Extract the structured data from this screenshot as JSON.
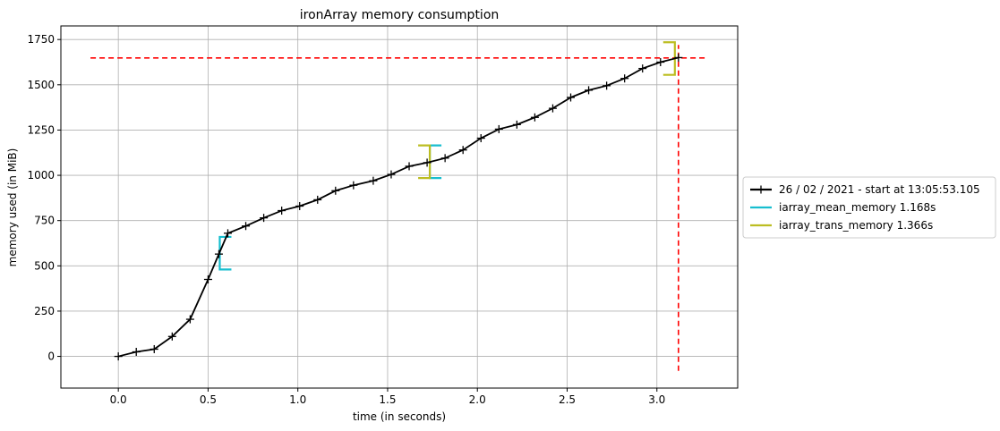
{
  "chart_data": {
    "type": "line",
    "title": "ironArray memory consumption",
    "xlabel": "time (in seconds)",
    "ylabel": "memory used (in MiB)",
    "xlim": [
      -0.32,
      3.45
    ],
    "ylim": [
      -175,
      1825
    ],
    "x_ticks": [
      0.0,
      0.5,
      1.0,
      1.5,
      2.0,
      2.5,
      3.0
    ],
    "x_tick_labels": [
      "0.0",
      "0.5",
      "1.0",
      "1.5",
      "2.0",
      "2.5",
      "3.0"
    ],
    "y_ticks": [
      0,
      250,
      500,
      750,
      1000,
      1250,
      1500,
      1750
    ],
    "y_tick_labels": [
      "0",
      "250",
      "500",
      "750",
      "1000",
      "1250",
      "1500",
      "1750"
    ],
    "grid": true,
    "legend_position": "outside-right",
    "series": [
      {
        "name": "26 / 02 / 2021 - start at 13:05:53.105",
        "color": "#000000",
        "marker": "plus",
        "x": [
          0.0,
          0.1,
          0.2,
          0.3,
          0.4,
          0.5,
          0.56,
          0.61,
          0.71,
          0.81,
          0.91,
          1.01,
          1.11,
          1.21,
          1.31,
          1.42,
          1.52,
          1.62,
          1.72,
          1.82,
          1.92,
          2.02,
          2.12,
          2.22,
          2.32,
          2.42,
          2.52,
          2.62,
          2.72,
          2.82,
          2.92,
          3.02,
          3.12
        ],
        "y": [
          0,
          25,
          40,
          110,
          205,
          425,
          565,
          680,
          720,
          765,
          805,
          830,
          865,
          915,
          945,
          970,
          1005,
          1050,
          1070,
          1095,
          1140,
          1205,
          1255,
          1280,
          1320,
          1370,
          1430,
          1470,
          1495,
          1535,
          1590,
          1625,
          1650
        ]
      }
    ],
    "brackets": [
      {
        "name": "iarray_mean_memory 1.168s",
        "color": "#17becf",
        "x": 0.565,
        "side": "left",
        "y_range": [
          480,
          660
        ]
      },
      {
        "name": "iarray_mean_memory 1.168s",
        "color": "#17becf",
        "x": 1.735,
        "side": "left",
        "y_range": [
          985,
          1165
        ]
      },
      {
        "name": "iarray_trans_memory 1.366s",
        "color": "#bcbd22",
        "x": 1.735,
        "side": "right",
        "y_range": [
          985,
          1165
        ]
      },
      {
        "name": "iarray_trans_memory 1.366s",
        "color": "#bcbd22",
        "x": 3.1,
        "side": "right",
        "y_range": [
          1555,
          1735
        ]
      }
    ],
    "reference_lines": [
      {
        "orientation": "horizontal",
        "value": 1648,
        "from": -0.155,
        "to": 3.28,
        "color": "#ff0000",
        "style": "dashed"
      },
      {
        "orientation": "vertical",
        "value": 3.12,
        "from": -80,
        "to": 1720,
        "color": "#ff0000",
        "style": "dashed"
      }
    ],
    "legend": [
      {
        "label": "26 / 02 / 2021 - start at 13:05:53.105",
        "color": "#000000",
        "marker": "plus"
      },
      {
        "label": "iarray_mean_memory 1.168s",
        "color": "#17becf",
        "marker": "none"
      },
      {
        "label": "iarray_trans_memory 1.366s",
        "color": "#bcbd22",
        "marker": "none"
      }
    ]
  }
}
